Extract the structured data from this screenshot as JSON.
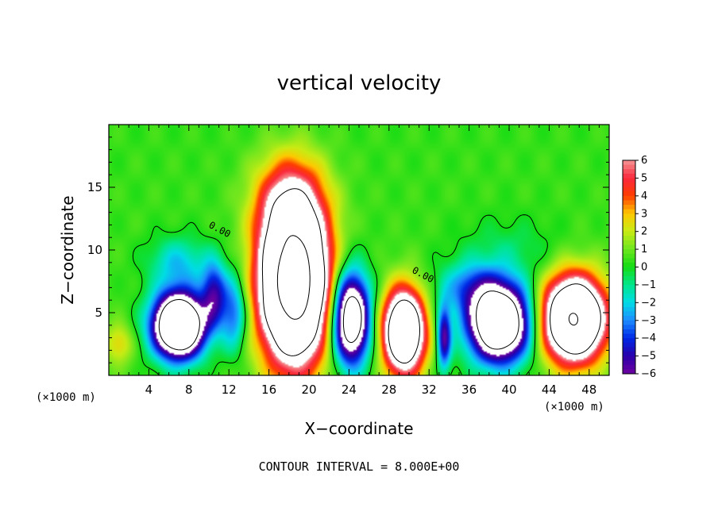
{
  "chart_data": {
    "type": "heatmap",
    "title": "vertical velocity",
    "xlabel": "X−coordinate",
    "ylabel": "Z−coordinate",
    "x_unit_label": "(×1000 m)",
    "z_unit_label": "(×1000 m)",
    "xlim": [
      0,
      50
    ],
    "ylim": [
      0,
      20
    ],
    "x_ticks": [
      4,
      8,
      12,
      16,
      20,
      24,
      28,
      32,
      36,
      40,
      44,
      48
    ],
    "y_ticks": [
      5,
      10,
      15
    ],
    "colorbar": {
      "min": -6,
      "max": 6,
      "ticks": [
        "6",
        "5",
        "4",
        "3",
        "2",
        "1",
        "0",
        "−1",
        "−2",
        "−3",
        "−4",
        "−5",
        "−6"
      ],
      "saturated_high_color": "#ffffff"
    },
    "contour_labels": [
      "0.00",
      "0.00"
    ],
    "footer": "CONTOUR INTERVAL = 8.000E+00",
    "cells": [
      {
        "x": 7,
        "z": 4,
        "w": -16,
        "rx": 2.5,
        "rz": 2.5
      },
      {
        "x": 10.5,
        "z": 6.5,
        "w": -5,
        "rx": 1.2,
        "rz": 2.5
      },
      {
        "x": 12.5,
        "z": 5,
        "w": -4,
        "rx": 1.3,
        "rz": 3.0
      },
      {
        "x": 18.5,
        "z": 7.5,
        "w": 20,
        "rx": 3.2,
        "rz": 6.0
      },
      {
        "x": 18,
        "z": 14,
        "w": 3.5,
        "rx": 3.5,
        "rz": 3.5
      },
      {
        "x": 24.2,
        "z": 4.5,
        "w": -12,
        "rx": 1.8,
        "rz": 3.5
      },
      {
        "x": 29.5,
        "z": 3.5,
        "w": 14,
        "rx": 2.0,
        "rz": 3.2
      },
      {
        "x": 33.5,
        "z": 3,
        "w": -6,
        "rx": 0.7,
        "rz": 2.5
      },
      {
        "x": 39,
        "z": 4.2,
        "w": -14,
        "rx": 3.0,
        "rz": 3.0
      },
      {
        "x": 36,
        "z": 7,
        "w": -3,
        "rx": 3.0,
        "rz": 2.0
      },
      {
        "x": 46.5,
        "z": 4.5,
        "w": 16,
        "rx": 3.0,
        "rz": 3.2
      },
      {
        "x": 7,
        "z": 9,
        "w": -2.5,
        "rx": 3.0,
        "rz": 2.0
      },
      {
        "x": 1.0,
        "z": 2.5,
        "w": 2.2,
        "rx": 1.4,
        "rz": 1.6
      },
      {
        "x": 40,
        "z": 10,
        "w": -1,
        "rx": 5.0,
        "rz": 2.5
      }
    ],
    "background_w": 0.5
  }
}
